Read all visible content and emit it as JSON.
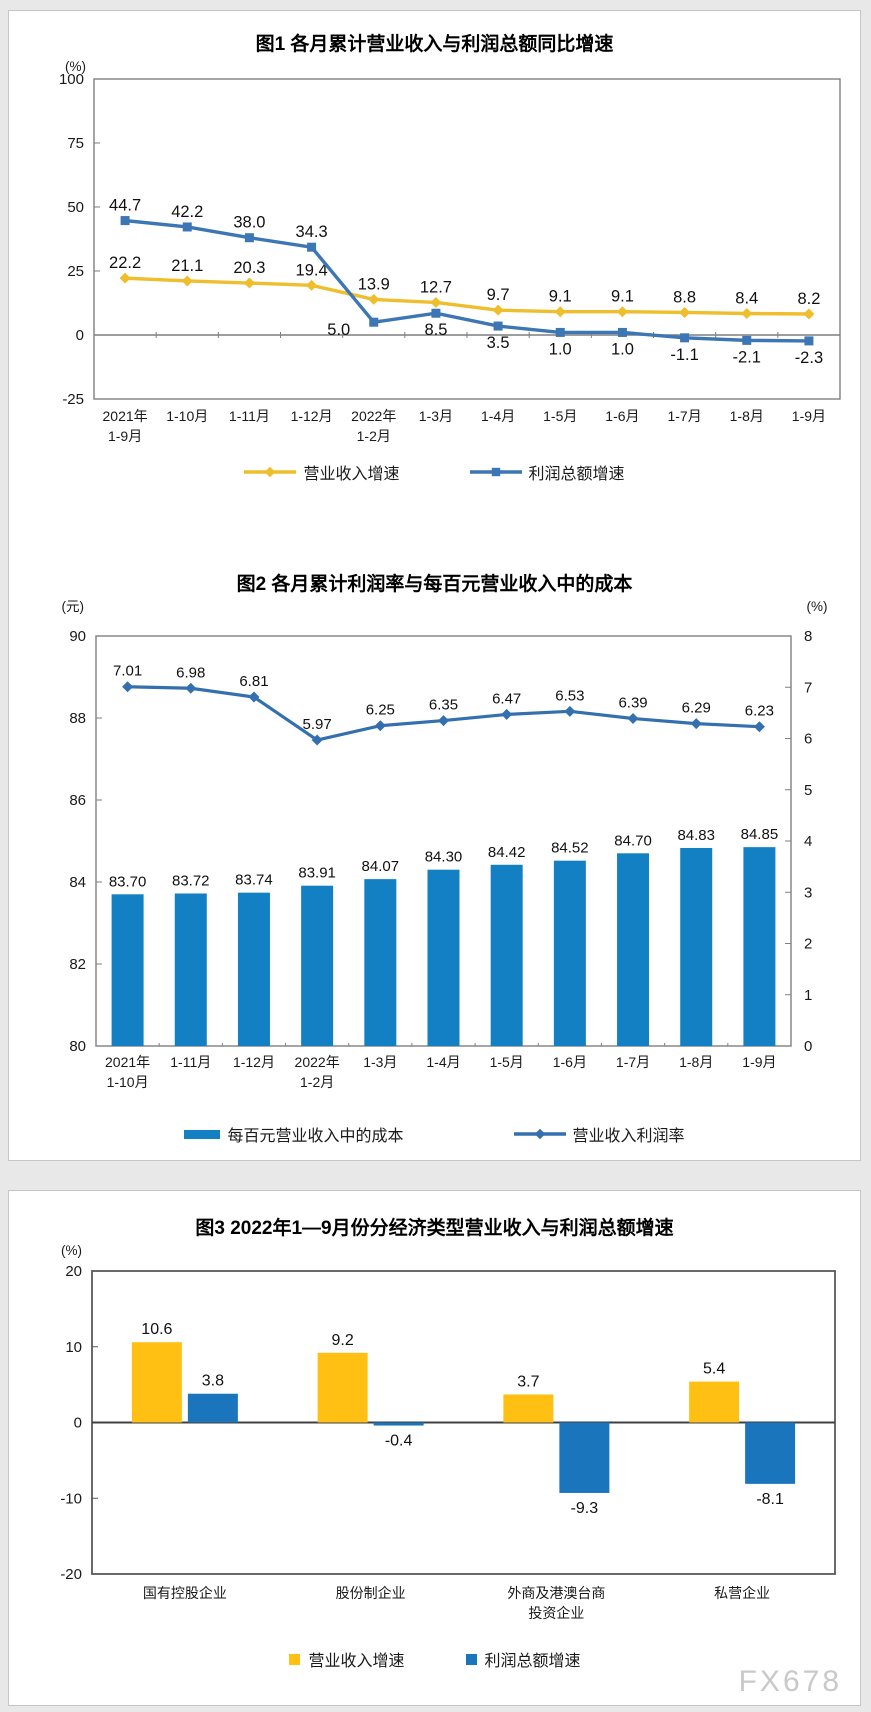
{
  "page": {
    "watermark": "FX678"
  },
  "chart_data": [
    {
      "id": "chart1",
      "type": "line",
      "title": "图1 各月累计营业收入与利润总额同比增速",
      "unit_left": "(%)",
      "ylim": [
        -25,
        100
      ],
      "yticks": [
        100,
        75,
        50,
        25,
        0,
        -25
      ],
      "grid": false,
      "legend_position": "bottom",
      "categories": [
        "2021年\n1-9月",
        "1-10月",
        "1-11月",
        "1-12月",
        "2022年\n1-2月",
        "1-3月",
        "1-4月",
        "1-5月",
        "1-6月",
        "1-7月",
        "1-8月",
        "1-9月"
      ],
      "series": [
        {
          "name": "营业收入增速",
          "color": "#EFBE2D",
          "marker": "diamond",
          "values": [
            22.2,
            21.1,
            20.3,
            19.4,
            13.9,
            12.7,
            9.7,
            9.1,
            9.1,
            8.8,
            8.4,
            8.2
          ],
          "labels": [
            "22.2",
            "21.1",
            "20.3",
            "19.4",
            "13.9",
            "12.7",
            "9.7",
            "9.1",
            "9.1",
            "8.8",
            "8.4",
            "8.2"
          ],
          "label_pos": [
            "a",
            "a",
            "a",
            "a",
            "a",
            "a",
            "a",
            "a",
            "a",
            "a",
            "a",
            "a"
          ]
        },
        {
          "name": "利润总额增速",
          "color": "#3C76B4",
          "marker": "square",
          "values": [
            44.7,
            42.2,
            38.0,
            34.3,
            5.0,
            8.5,
            3.5,
            1.0,
            1.0,
            -1.1,
            -2.1,
            -2.3
          ],
          "labels": [
            "44.7",
            "42.2",
            "38.0",
            "34.3",
            "5.0",
            "8.5",
            "3.5",
            "1.0",
            "1.0",
            "-1.1",
            "-2.1",
            "-2.3"
          ],
          "label_pos": [
            "a",
            "a",
            "a",
            "a",
            "bl",
            "b",
            "b",
            "b",
            "b",
            "b",
            "b",
            "b"
          ]
        }
      ]
    },
    {
      "id": "chart2",
      "type": "bar+line",
      "title": "图2 各月累计利润率与每百元营业收入中的成本",
      "unit_left": "(元)",
      "unit_right": "(%)",
      "ylim_left": [
        80,
        90
      ],
      "yticks_left": [
        90,
        88,
        86,
        84,
        82,
        80
      ],
      "ylim_right": [
        0,
        8
      ],
      "yticks_right": [
        8,
        7,
        6,
        5,
        4,
        3,
        2,
        1,
        0
      ],
      "grid": false,
      "legend_position": "bottom",
      "categories": [
        "2021年\n1-10月",
        "1-11月",
        "1-12月",
        "2022年\n1-2月",
        "1-3月",
        "1-4月",
        "1-5月",
        "1-6月",
        "1-7月",
        "1-8月",
        "1-9月"
      ],
      "bar_series": {
        "name": "每百元营业收入中的成本",
        "color": "#1380C4",
        "axis": "left",
        "values": [
          83.7,
          83.72,
          83.74,
          83.91,
          84.07,
          84.3,
          84.42,
          84.52,
          84.7,
          84.83,
          84.85
        ],
        "labels": [
          "83.70",
          "83.72",
          "83.74",
          "83.91",
          "84.07",
          "84.30",
          "84.42",
          "84.52",
          "84.70",
          "84.83",
          "84.85"
        ]
      },
      "line_series": {
        "name": "营业收入利润率",
        "color": "#3470AF",
        "axis": "right",
        "values": [
          7.01,
          6.98,
          6.81,
          5.97,
          6.25,
          6.35,
          6.47,
          6.53,
          6.39,
          6.29,
          6.23
        ],
        "labels": [
          "7.01",
          "6.98",
          "6.81",
          "5.97",
          "6.25",
          "6.35",
          "6.47",
          "6.53",
          "6.39",
          "6.29",
          "6.23"
        ]
      }
    },
    {
      "id": "chart3",
      "type": "bar",
      "title": "图3 2022年1—9月份分经济类型营业收入与利润总额增速",
      "unit_left": "(%)",
      "ylim": [
        -20,
        20
      ],
      "yticks": [
        20,
        10,
        0,
        -10,
        -20
      ],
      "grid": false,
      "legend_position": "bottom",
      "categories": [
        "国有控股企业",
        "股份制企业",
        "外商及港澳台商\n投资企业",
        "私营企业"
      ],
      "series": [
        {
          "name": "营业收入增速",
          "color": "#FFC013",
          "values": [
            10.6,
            9.2,
            3.7,
            5.4
          ],
          "labels": [
            "10.6",
            "9.2",
            "3.7",
            "5.4"
          ]
        },
        {
          "name": "利润总额增速",
          "color": "#1B75BC",
          "values": [
            3.8,
            -0.4,
            -9.3,
            -8.1
          ],
          "labels": [
            "3.8",
            "-0.4",
            "-9.3",
            "-8.1"
          ]
        }
      ]
    }
  ]
}
